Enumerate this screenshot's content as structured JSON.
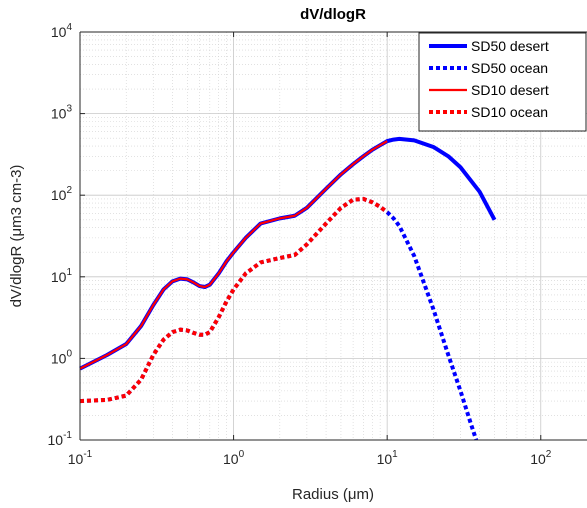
{
  "chart_data": {
    "type": "line",
    "title": "dV/dlogR",
    "xlabel": "Radius (μm)",
    "ylabel": "dV/dlogR  (μm3 cm-3)",
    "xscale": "log",
    "yscale": "log",
    "xlim": [
      0.1,
      200
    ],
    "ylim": [
      0.1,
      10000
    ],
    "grid": true,
    "minor_grid": true,
    "legend_position": "top-right",
    "x_ticks": [
      {
        "value": 0.1,
        "base": "10",
        "exp": "-1"
      },
      {
        "value": 1,
        "base": "10",
        "exp": "0"
      },
      {
        "value": 10,
        "base": "10",
        "exp": "1"
      },
      {
        "value": 100,
        "base": "10",
        "exp": "2"
      }
    ],
    "y_ticks": [
      {
        "value": 0.1,
        "base": "10",
        "exp": "-1"
      },
      {
        "value": 1,
        "base": "10",
        "exp": "0"
      },
      {
        "value": 10,
        "base": "10",
        "exp": "1"
      },
      {
        "value": 100,
        "base": "10",
        "exp": "2"
      },
      {
        "value": 1000,
        "base": "10",
        "exp": "3"
      },
      {
        "value": 10000,
        "base": "10",
        "exp": "4"
      }
    ],
    "series": [
      {
        "name": "SD50 desert",
        "color": "#0000ff",
        "style": "solid",
        "points": [
          [
            0.1,
            0.75
          ],
          [
            0.15,
            1.1
          ],
          [
            0.2,
            1.5
          ],
          [
            0.25,
            2.5
          ],
          [
            0.3,
            4.5
          ],
          [
            0.35,
            7
          ],
          [
            0.4,
            8.8
          ],
          [
            0.45,
            9.5
          ],
          [
            0.5,
            9.3
          ],
          [
            0.55,
            8.5
          ],
          [
            0.6,
            7.7
          ],
          [
            0.65,
            7.5
          ],
          [
            0.7,
            8
          ],
          [
            0.8,
            11
          ],
          [
            0.9,
            15.5
          ],
          [
            1,
            20
          ],
          [
            1.2,
            30
          ],
          [
            1.5,
            45
          ],
          [
            2,
            52
          ],
          [
            2.5,
            56
          ],
          [
            3,
            70
          ],
          [
            4,
            120
          ],
          [
            5,
            180
          ],
          [
            6,
            240
          ],
          [
            7,
            300
          ],
          [
            8,
            360
          ],
          [
            9,
            410
          ],
          [
            10,
            460
          ],
          [
            11,
            480
          ],
          [
            12,
            490
          ],
          [
            15,
            470
          ],
          [
            20,
            390
          ],
          [
            25,
            300
          ],
          [
            30,
            220
          ],
          [
            40,
            110
          ],
          [
            50,
            50
          ]
        ]
      },
      {
        "name": "SD50 ocean",
        "color": "#0000ff",
        "style": "dotted",
        "points": [
          [
            0.1,
            0.3
          ],
          [
            0.15,
            0.31
          ],
          [
            0.2,
            0.35
          ],
          [
            0.25,
            0.55
          ],
          [
            0.3,
            1.1
          ],
          [
            0.35,
            1.7
          ],
          [
            0.4,
            2.1
          ],
          [
            0.45,
            2.25
          ],
          [
            0.5,
            2.2
          ],
          [
            0.55,
            2.05
          ],
          [
            0.6,
            1.95
          ],
          [
            0.65,
            1.95
          ],
          [
            0.7,
            2.1
          ],
          [
            0.8,
            3.2
          ],
          [
            0.9,
            5
          ],
          [
            1,
            7
          ],
          [
            1.2,
            11
          ],
          [
            1.5,
            15
          ],
          [
            2,
            17
          ],
          [
            2.5,
            18.5
          ],
          [
            3,
            25
          ],
          [
            4,
            45
          ],
          [
            5,
            70
          ],
          [
            6,
            88
          ],
          [
            7,
            90
          ],
          [
            8,
            82
          ],
          [
            9,
            72
          ],
          [
            10,
            62
          ],
          [
            11,
            52
          ],
          [
            12,
            42
          ],
          [
            15,
            18
          ],
          [
            20,
            4
          ],
          [
            25,
            1.1
          ],
          [
            30,
            0.4
          ],
          [
            35,
            0.16
          ],
          [
            38,
            0.1
          ]
        ]
      },
      {
        "name": "SD10 desert",
        "color": "#ff0000",
        "style": "solid",
        "points": [
          [
            0.1,
            0.75
          ],
          [
            0.15,
            1.1
          ],
          [
            0.2,
            1.5
          ],
          [
            0.25,
            2.5
          ],
          [
            0.3,
            4.5
          ],
          [
            0.35,
            7
          ],
          [
            0.4,
            8.8
          ],
          [
            0.45,
            9.5
          ],
          [
            0.5,
            9.3
          ],
          [
            0.55,
            8.5
          ],
          [
            0.6,
            7.7
          ],
          [
            0.65,
            7.5
          ],
          [
            0.7,
            8
          ],
          [
            0.8,
            11
          ],
          [
            0.9,
            15.5
          ],
          [
            1,
            20
          ],
          [
            1.2,
            30
          ],
          [
            1.5,
            45
          ],
          [
            2,
            52
          ],
          [
            2.5,
            56
          ],
          [
            3,
            70
          ],
          [
            4,
            120
          ],
          [
            5,
            180
          ],
          [
            6,
            240
          ],
          [
            7,
            300
          ],
          [
            8,
            360
          ],
          [
            9,
            410
          ],
          [
            10,
            460
          ]
        ]
      },
      {
        "name": "SD10 ocean",
        "color": "#ff0000",
        "style": "dotted",
        "points": [
          [
            0.1,
            0.3
          ],
          [
            0.15,
            0.31
          ],
          [
            0.2,
            0.35
          ],
          [
            0.25,
            0.55
          ],
          [
            0.3,
            1.1
          ],
          [
            0.35,
            1.7
          ],
          [
            0.4,
            2.1
          ],
          [
            0.45,
            2.25
          ],
          [
            0.5,
            2.2
          ],
          [
            0.55,
            2.05
          ],
          [
            0.6,
            1.95
          ],
          [
            0.65,
            1.95
          ],
          [
            0.7,
            2.1
          ],
          [
            0.8,
            3.2
          ],
          [
            0.9,
            5
          ],
          [
            1,
            7
          ],
          [
            1.2,
            11
          ],
          [
            1.5,
            15
          ],
          [
            2,
            17
          ],
          [
            2.5,
            18.5
          ],
          [
            3,
            25
          ],
          [
            4,
            45
          ],
          [
            5,
            70
          ],
          [
            6,
            88
          ],
          [
            7,
            90
          ],
          [
            8,
            82
          ],
          [
            9,
            72
          ],
          [
            10,
            62
          ]
        ]
      }
    ]
  }
}
